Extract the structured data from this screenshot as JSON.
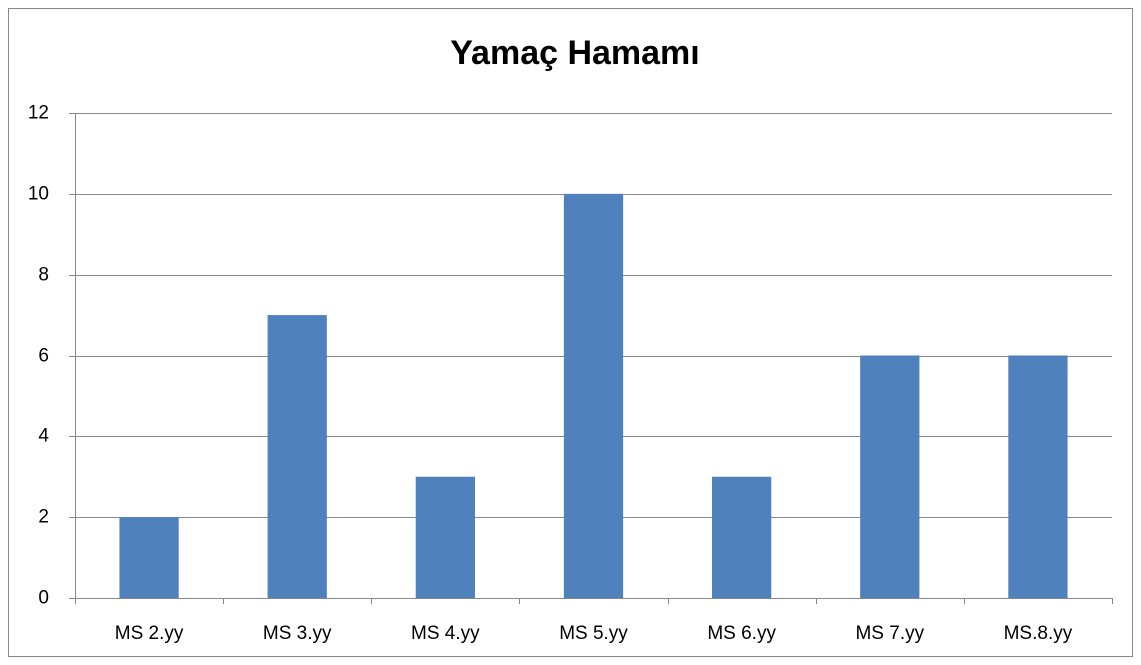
{
  "chart_data": {
    "type": "bar",
    "title": "Yamaç Hamamı",
    "categories": [
      "MS 2.yy",
      "MS 3.yy",
      "MS 4.yy",
      "MS 5.yy",
      "MS 6.yy",
      "MS 7.yy",
      "MS.8.yy"
    ],
    "values": [
      2,
      7,
      3,
      10,
      3,
      6,
      6
    ],
    "color": "#4f81bd",
    "ylim": [
      0,
      12
    ],
    "yticks": [
      0,
      2,
      4,
      6,
      8,
      10,
      12
    ],
    "grid": true
  }
}
